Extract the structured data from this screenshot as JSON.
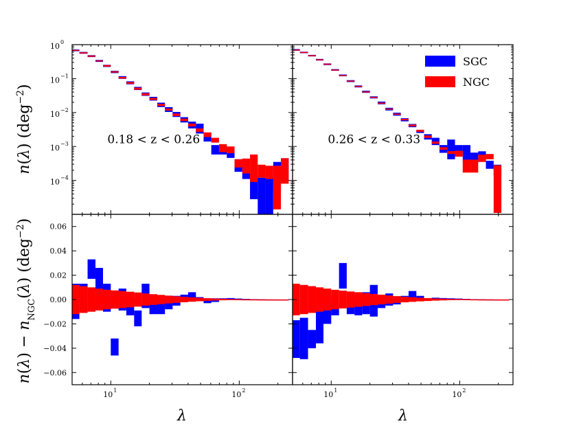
{
  "chart_data": [
    {
      "type": "bar",
      "panel": "top-left",
      "annotation": "0.18 < z < 0.26",
      "xscale": "log",
      "yscale": "log",
      "xlim": [
        5,
        260
      ],
      "ylim": [
        1e-05,
        1
      ],
      "ylabel": "n(λ) (deg⁻²)",
      "x_ticks": [
        {
          "v": 10,
          "base": "10",
          "exp": "1"
        },
        {
          "v": 100,
          "base": "10",
          "exp": "2"
        }
      ],
      "y_ticks": [
        {
          "v": 1,
          "base": "10",
          "exp": "0"
        },
        {
          "v": 0.1,
          "base": "10",
          "exp": "−1"
        },
        {
          "v": 0.01,
          "base": "10",
          "exp": "−2"
        },
        {
          "v": 0.001,
          "base": "10",
          "exp": "−3"
        },
        {
          "v": 0.0001,
          "base": "10",
          "exp": "−4"
        }
      ],
      "bin_edges": [
        5,
        5.7,
        6.6,
        7.6,
        8.7,
        10,
        11.5,
        13.2,
        15.2,
        17.4,
        20,
        23,
        26.4,
        30.3,
        34.8,
        40,
        46,
        52.8,
        60.6,
        69.6,
        80,
        91.9,
        105.6,
        121.3,
        139.3,
        160,
        183.8,
        211.1,
        242.5
      ],
      "series": [
        {
          "name": "SGC",
          "color": "#0000ff",
          "lo": [
            0.64,
            0.54,
            0.43,
            0.31,
            0.22,
            0.145,
            0.098,
            0.068,
            0.046,
            0.031,
            0.0225,
            0.0145,
            0.0104,
            0.0074,
            0.0051,
            0.0034,
            0.0024,
            0.0014,
            0.00058,
            0.00058,
            0.00046,
            0.00018,
            0.00011,
            2.8e-05,
            1e-05,
            1e-05,
            4.8e-05,
            9.5e-05
          ],
          "hi": [
            0.72,
            0.61,
            0.49,
            0.355,
            0.255,
            0.17,
            0.118,
            0.083,
            0.057,
            0.039,
            0.029,
            0.0195,
            0.0144,
            0.0104,
            0.0073,
            0.0054,
            0.0047,
            0.0025,
            0.0011,
            0.0011,
            0.00089,
            0.00042,
            0.00027,
            0.00014,
            0.00012,
            0.00012,
            0.00035,
            0.00045
          ]
        },
        {
          "name": "NGC",
          "color": "#ff0000",
          "lo": [
            0.66,
            0.55,
            0.44,
            0.32,
            0.225,
            0.15,
            0.1,
            0.07,
            0.047,
            0.032,
            0.0235,
            0.0155,
            0.0114,
            0.0079,
            0.0056,
            0.0039,
            0.0027,
            0.0019,
            0.0013,
            0.00068,
            0.00063,
            0.00024,
            0.00016,
            9e-05,
            0.00012,
            0.00011,
            1.4e-05,
            8e-05
          ],
          "hi": [
            0.7,
            0.595,
            0.48,
            0.345,
            0.25,
            0.165,
            0.112,
            0.079,
            0.054,
            0.037,
            0.027,
            0.018,
            0.0131,
            0.0093,
            0.0066,
            0.0047,
            0.0034,
            0.0026,
            0.0018,
            0.00117,
            0.001,
            0.00042,
            0.00044,
            0.00058,
            0.00029,
            0.00027,
            0.00027,
            0.00045
          ]
        }
      ]
    },
    {
      "type": "bar",
      "panel": "top-right",
      "annotation": "0.26 < z < 0.33",
      "xscale": "log",
      "yscale": "log",
      "xlim": [
        5,
        260
      ],
      "ylim": [
        1e-05,
        1
      ],
      "x_ticks": [
        {
          "v": 10,
          "base": "10",
          "exp": "1"
        },
        {
          "v": 100,
          "base": "10",
          "exp": "2"
        }
      ],
      "legend": {
        "placement": "top-right",
        "entries": [
          {
            "label": "SGC",
            "color": "#0000ff"
          },
          {
            "label": "NGC",
            "color": "#ff0000"
          }
        ]
      },
      "bin_edges": [
        5,
        5.7,
        6.6,
        7.6,
        8.7,
        10,
        11.5,
        13.2,
        15.2,
        17.4,
        20,
        23,
        26.4,
        30.3,
        34.8,
        40,
        46,
        52.8,
        60.6,
        69.6,
        80,
        91.9,
        105.6,
        121.3,
        139.3,
        160,
        183.8,
        211.1
      ],
      "series": [
        {
          "name": "SGC",
          "color": "#0000ff",
          "lo": [
            0.66,
            0.56,
            0.45,
            0.34,
            0.25,
            0.17,
            0.117,
            0.079,
            0.055,
            0.038,
            0.026,
            0.0175,
            0.0115,
            0.0081,
            0.0055,
            0.0037,
            0.0025,
            0.0016,
            0.0011,
            0.00065,
            0.00042,
            0.00065,
            0.00034,
            0.00034,
            0.00037,
            0.00022,
            0.00014
          ],
          "hi": [
            0.74,
            0.62,
            0.5,
            0.38,
            0.28,
            0.19,
            0.132,
            0.09,
            0.063,
            0.044,
            0.03,
            0.021,
            0.0138,
            0.0099,
            0.0068,
            0.0046,
            0.0031,
            0.0023,
            0.0018,
            0.0011,
            0.0016,
            0.0011,
            0.0011,
            0.00066,
            0.00072,
            0.00038,
            0.00029
          ]
        },
        {
          "name": "NGC",
          "color": "#ff0000",
          "lo": [
            0.68,
            0.57,
            0.46,
            0.35,
            0.26,
            0.175,
            0.12,
            0.082,
            0.057,
            0.039,
            0.027,
            0.018,
            0.0122,
            0.0086,
            0.0059,
            0.0039,
            0.0027,
            0.0018,
            0.0012,
            0.0008,
            0.0006,
            0.0005,
            0.00017,
            0.00017,
            0.00035,
            0.00042,
            1.1e-05
          ],
          "hi": [
            0.72,
            0.61,
            0.49,
            0.37,
            0.275,
            0.185,
            0.128,
            0.087,
            0.061,
            0.042,
            0.029,
            0.0195,
            0.0131,
            0.0093,
            0.0065,
            0.0044,
            0.0031,
            0.0021,
            0.0014,
            0.00095,
            0.00073,
            0.00075,
            0.00041,
            0.00041,
            0.00057,
            0.0006,
            0.00028
          ]
        }
      ]
    },
    {
      "type": "bar",
      "panel": "bottom-left",
      "xscale": "log",
      "yscale": "linear",
      "xlim": [
        5,
        260
      ],
      "ylim": [
        -0.07,
        0.07
      ],
      "xlabel": "λ",
      "ylabel": "n(λ) − n_NGC(λ) (deg⁻²)",
      "x_ticks": [
        {
          "v": 10,
          "base": "10",
          "exp": "1"
        },
        {
          "v": 100,
          "base": "10",
          "exp": "2"
        }
      ],
      "y_ticks": [
        {
          "v": 0.06,
          "label": "0.06"
        },
        {
          "v": 0.04,
          "label": "0.04"
        },
        {
          "v": 0.02,
          "label": "0.02"
        },
        {
          "v": 0,
          "label": "0.00"
        },
        {
          "v": -0.02,
          "label": "−0.02"
        },
        {
          "v": -0.04,
          "label": "−0.04"
        },
        {
          "v": -0.06,
          "label": "−0.06"
        }
      ],
      "bin_edges": [
        5,
        5.7,
        6.6,
        7.6,
        8.7,
        10,
        11.5,
        13.2,
        15.2,
        17.4,
        20,
        23,
        26.4,
        30.3,
        34.8,
        40,
        46,
        52.8,
        60.6,
        69.6,
        80,
        91.9,
        105.6,
        121.3,
        139.3,
        160,
        183.8,
        211.1,
        242.5
      ],
      "series": [
        {
          "name": "SGC",
          "color": "#0000ff",
          "lo": [
            -0.016,
            -0.002,
            0.017,
            0.006,
            -0.01,
            -0.046,
            -0.009,
            -0.013,
            -0.022,
            -0.007,
            -0.012,
            -0.012,
            -0.008,
            -0.005,
            -0.002,
            0.0,
            -0.001,
            -0.003,
            -0.002,
            -0.0005,
            -0.0003,
            -0.0002,
            -0.0001,
            -0.0001,
            -0.0001,
            -5e-05,
            -3e-05,
            -2e-05
          ],
          "hi": [
            0.013,
            0.013,
            0.033,
            0.026,
            0.013,
            -0.032,
            0.009,
            0.002,
            -0.009,
            0.013,
            0.003,
            0.003,
            0.003,
            0.003,
            0.004,
            0.006,
            0.002,
            0.0,
            0.001,
            0.001,
            0.0012,
            0.0008,
            0.0005,
            0.0003,
            0.0002,
            0.0001,
            5e-05,
            3e-05
          ]
        },
        {
          "name": "NGC",
          "color": "#ff0000",
          "lo": [
            -0.012,
            -0.011,
            -0.01,
            -0.009,
            -0.008,
            -0.0075,
            -0.007,
            -0.0064,
            -0.0058,
            -0.005,
            -0.0044,
            -0.0038,
            -0.0032,
            -0.0027,
            -0.0022,
            -0.0018,
            -0.0014,
            -0.0011,
            -0.0008,
            -0.0006,
            -0.0004,
            -0.0003,
            -0.0002,
            -0.00015,
            -0.0001,
            -8e-05,
            -6e-05,
            -4e-05
          ],
          "hi": [
            0.012,
            0.011,
            0.01,
            0.009,
            0.008,
            0.0075,
            0.007,
            0.0064,
            0.0058,
            0.005,
            0.0044,
            0.0038,
            0.0032,
            0.0027,
            0.0022,
            0.0018,
            0.0014,
            0.0011,
            0.0008,
            0.0006,
            0.0004,
            0.0003,
            0.0002,
            0.00015,
            0.0001,
            8e-05,
            6e-05,
            4e-05
          ]
        }
      ]
    },
    {
      "type": "bar",
      "panel": "bottom-right",
      "xscale": "log",
      "yscale": "linear",
      "xlim": [
        5,
        260
      ],
      "ylim": [
        -0.07,
        0.07
      ],
      "xlabel": "λ",
      "x_ticks": [
        {
          "v": 10,
          "base": "10",
          "exp": "1"
        },
        {
          "v": 100,
          "base": "10",
          "exp": "2"
        }
      ],
      "bin_edges": [
        5,
        5.7,
        6.6,
        7.6,
        8.7,
        10,
        11.5,
        13.2,
        15.2,
        17.4,
        20,
        23,
        26.4,
        30.3,
        34.8,
        40,
        46,
        52.8,
        60.6,
        69.6,
        80,
        91.9,
        105.6,
        121.3,
        139.3,
        160,
        183.8,
        211.1,
        242.5
      ],
      "series": [
        {
          "name": "SGC",
          "color": "#0000ff",
          "lo": [
            -0.048,
            -0.049,
            -0.04,
            -0.036,
            -0.02,
            -0.013,
            0.009,
            -0.012,
            -0.013,
            -0.012,
            -0.014,
            -0.007,
            -0.005,
            -0.004,
            -0.002,
            -0.001,
            -0.001,
            -0.0005,
            -0.0005,
            -0.0004,
            -0.0003,
            -0.0002,
            -0.0001,
            -0.0001,
            -8e-05,
            -5e-05,
            -3e-05,
            -2e-05
          ],
          "hi": [
            -0.017,
            -0.015,
            -0.025,
            -0.006,
            0.003,
            -0.003,
            0.03,
            0.003,
            0.004,
            0.006,
            0.012,
            0.002,
            0.005,
            0.002,
            0.003,
            0.007,
            0.003,
            0.001,
            0.0015,
            0.0012,
            0.001,
            0.0008,
            0.0005,
            0.0003,
            0.0002,
            0.00012,
            6e-05,
            3e-05
          ]
        },
        {
          "name": "NGC",
          "color": "#ff0000",
          "lo": [
            -0.013,
            -0.012,
            -0.011,
            -0.01,
            -0.009,
            -0.008,
            -0.0073,
            -0.0066,
            -0.006,
            -0.0053,
            -0.0046,
            -0.004,
            -0.0034,
            -0.0028,
            -0.0023,
            -0.0019,
            -0.0015,
            -0.0012,
            -0.0009,
            -0.0007,
            -0.0005,
            -0.0004,
            -0.0003,
            -0.0002,
            -0.00014,
            -0.0001,
            -7e-05,
            -5e-05
          ],
          "hi": [
            0.013,
            0.012,
            0.011,
            0.01,
            0.009,
            0.008,
            0.0073,
            0.0066,
            0.006,
            0.0053,
            0.0046,
            0.004,
            0.0034,
            0.0028,
            0.0023,
            0.0019,
            0.0015,
            0.0012,
            0.0009,
            0.0007,
            0.0005,
            0.0004,
            0.0003,
            0.0002,
            0.00014,
            0.0001,
            7e-05,
            5e-05
          ]
        }
      ]
    }
  ]
}
